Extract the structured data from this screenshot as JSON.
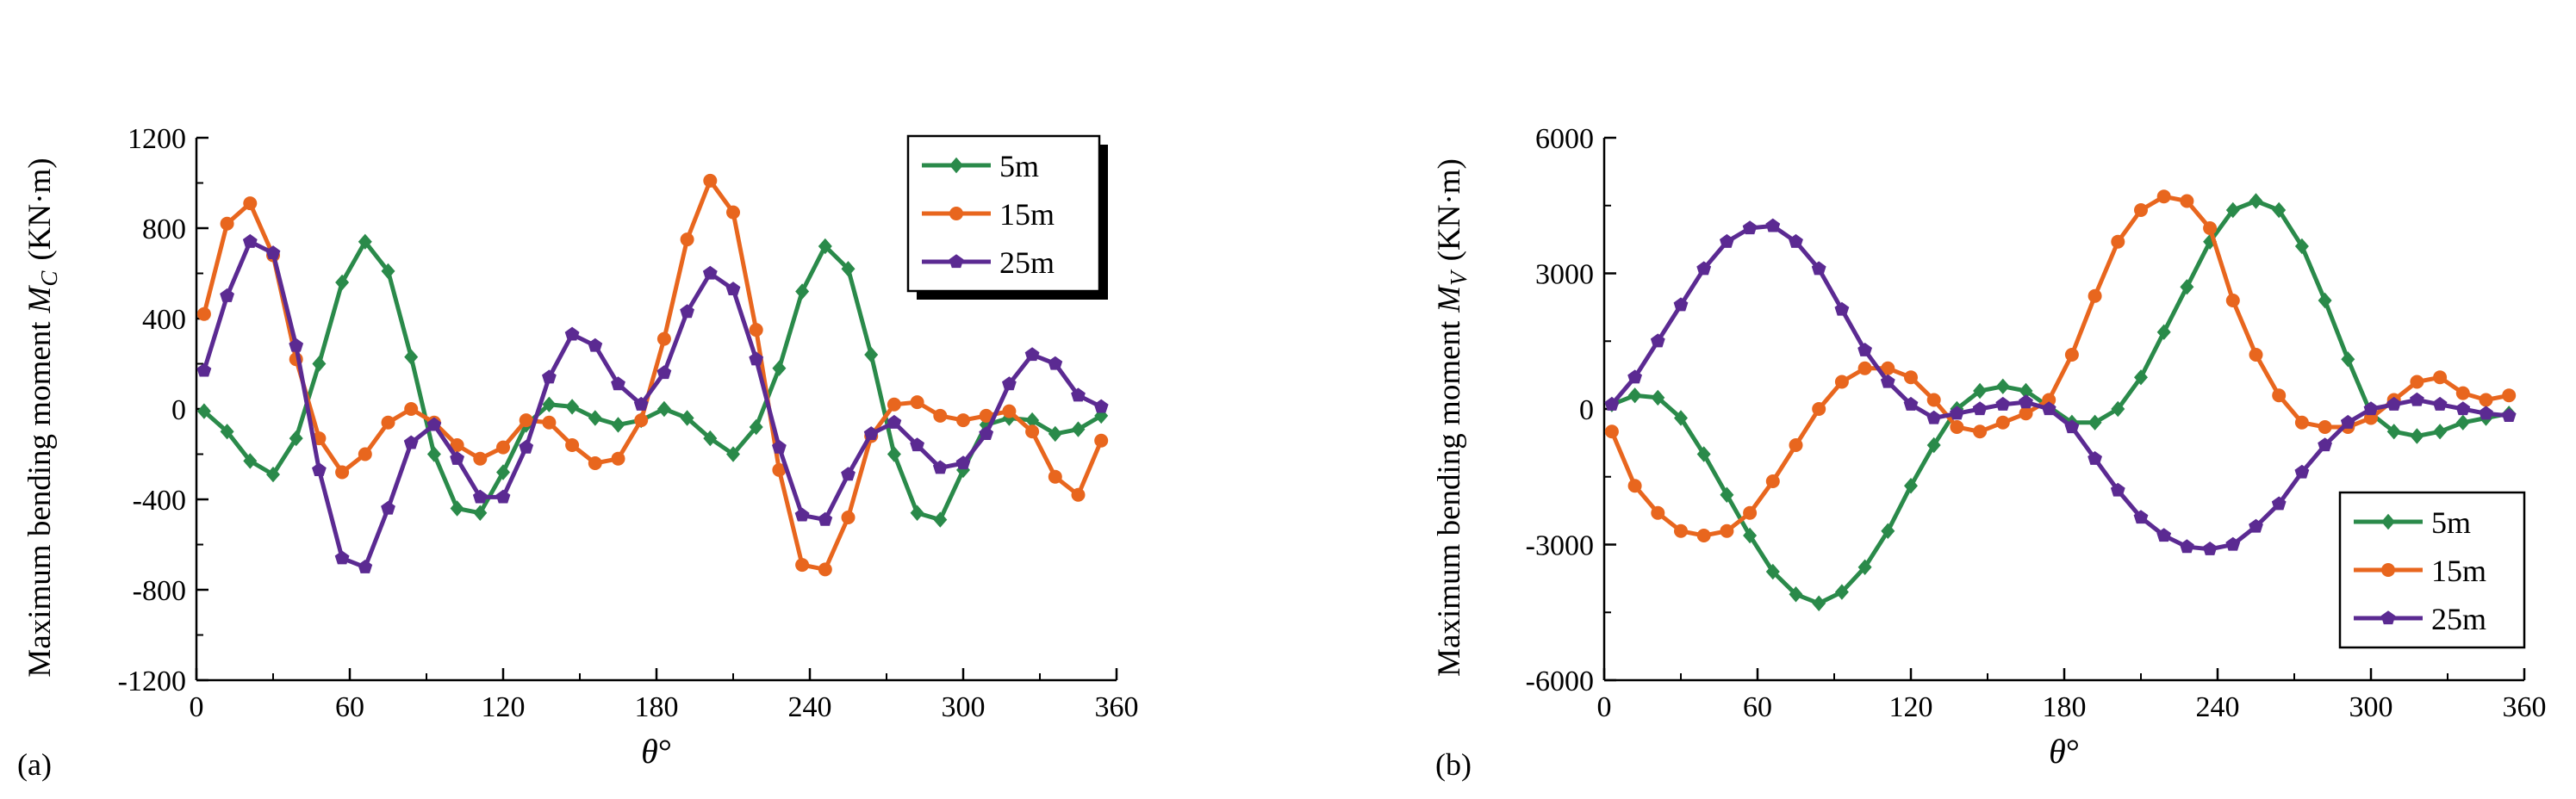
{
  "colors": {
    "s5": "#2a8a4a",
    "s15": "#e8661e",
    "s25": "#5b2a92",
    "axis": "#000000"
  },
  "chart_data": [
    {
      "panel_label": "(a)",
      "type": "line",
      "ylabel": "Maximum bending moment",
      "ylabel_symbol": "M",
      "ylabel_sub": "C",
      "ylabel_unit": "(KN·m)",
      "xlabel_symbol": "θ",
      "xlabel_unit": "°",
      "xlim": [
        0,
        360
      ],
      "ylim": [
        -1200,
        1200
      ],
      "xticks": [
        0,
        60,
        120,
        180,
        240,
        300,
        360
      ],
      "yticks": [
        -1200,
        -800,
        -400,
        0,
        400,
        800,
        1200
      ],
      "legend_position": "top-right",
      "x": [
        3,
        12,
        21,
        30,
        39,
        48,
        57,
        66,
        75,
        84,
        93,
        102,
        111,
        120,
        129,
        138,
        147,
        156,
        165,
        174,
        183,
        192,
        201,
        210,
        219,
        228,
        237,
        246,
        255,
        264,
        273,
        282,
        291,
        300,
        309,
        318,
        327,
        336,
        345,
        354
      ],
      "series": [
        {
          "name": "5m",
          "marker": "diamond",
          "values": [
            -10,
            -100,
            -230,
            -290,
            -130,
            200,
            560,
            740,
            610,
            230,
            -200,
            -440,
            -460,
            -280,
            -70,
            20,
            10,
            -40,
            -70,
            -50,
            0,
            -40,
            -130,
            -200,
            -80,
            180,
            520,
            720,
            620,
            240,
            -200,
            -460,
            -490,
            -270,
            -70,
            -40,
            -50,
            -110,
            -90,
            -30
          ]
        },
        {
          "name": "15m",
          "marker": "circle",
          "values": [
            420,
            820,
            910,
            680,
            220,
            -130,
            -280,
            -200,
            -60,
            0,
            -60,
            -160,
            -220,
            -170,
            -50,
            -60,
            -160,
            -240,
            -220,
            -50,
            310,
            750,
            1010,
            870,
            350,
            -270,
            -690,
            -710,
            -480,
            -120,
            20,
            30,
            -30,
            -50,
            -30,
            -10,
            -100,
            -300,
            -380,
            -140
          ]
        },
        {
          "name": "25m",
          "marker": "pentagon",
          "values": [
            170,
            500,
            740,
            690,
            280,
            -270,
            -660,
            -700,
            -440,
            -150,
            -70,
            -220,
            -390,
            -390,
            -170,
            140,
            330,
            280,
            110,
            20,
            160,
            430,
            600,
            530,
            220,
            -170,
            -470,
            -490,
            -290,
            -110,
            -60,
            -160,
            -260,
            -240,
            -110,
            110,
            240,
            200,
            60,
            10
          ]
        }
      ]
    },
    {
      "panel_label": "(b)",
      "type": "line",
      "ylabel": "Maximum bending moment",
      "ylabel_symbol": "M",
      "ylabel_sub": "V",
      "ylabel_unit": "(KN·m)",
      "xlabel_symbol": "θ",
      "xlabel_unit": "°",
      "xlim": [
        0,
        360
      ],
      "ylim": [
        -6000,
        6000
      ],
      "xticks": [
        0,
        60,
        120,
        180,
        240,
        300,
        360
      ],
      "yticks": [
        -6000,
        -3000,
        0,
        3000,
        6000
      ],
      "legend_position": "bottom-right",
      "x": [
        3,
        12,
        21,
        30,
        39,
        48,
        57,
        66,
        75,
        84,
        93,
        102,
        111,
        120,
        129,
        138,
        147,
        156,
        165,
        174,
        183,
        192,
        201,
        210,
        219,
        228,
        237,
        246,
        255,
        264,
        273,
        282,
        291,
        300,
        309,
        318,
        327,
        336,
        345,
        354
      ],
      "series": [
        {
          "name": "5m",
          "marker": "diamond",
          "values": [
            100,
            300,
            250,
            -200,
            -1000,
            -1900,
            -2800,
            -3600,
            -4100,
            -4300,
            -4050,
            -3500,
            -2700,
            -1700,
            -800,
            0,
            400,
            500,
            400,
            50,
            -300,
            -300,
            0,
            700,
            1700,
            2700,
            3700,
            4400,
            4600,
            4400,
            3600,
            2400,
            1100,
            -100,
            -500,
            -600,
            -500,
            -300,
            -200,
            -100
          ]
        },
        {
          "name": "15m",
          "marker": "circle",
          "values": [
            -500,
            -1700,
            -2300,
            -2700,
            -2800,
            -2700,
            -2300,
            -1600,
            -800,
            0,
            600,
            900,
            900,
            700,
            200,
            -400,
            -500,
            -300,
            -100,
            200,
            1200,
            2500,
            3700,
            4400,
            4700,
            4600,
            4000,
            2400,
            1200,
            300,
            -300,
            -400,
            -400,
            -200,
            200,
            600,
            700,
            350,
            200,
            300
          ]
        },
        {
          "name": "25m",
          "marker": "pentagon",
          "values": [
            100,
            700,
            1500,
            2300,
            3100,
            3700,
            4000,
            4050,
            3700,
            3100,
            2200,
            1300,
            600,
            100,
            -200,
            -100,
            0,
            100,
            150,
            0,
            -400,
            -1100,
            -1800,
            -2400,
            -2800,
            -3050,
            -3100,
            -3000,
            -2600,
            -2100,
            -1400,
            -800,
            -300,
            0,
            100,
            200,
            100,
            0,
            -100,
            -150
          ]
        }
      ]
    }
  ]
}
